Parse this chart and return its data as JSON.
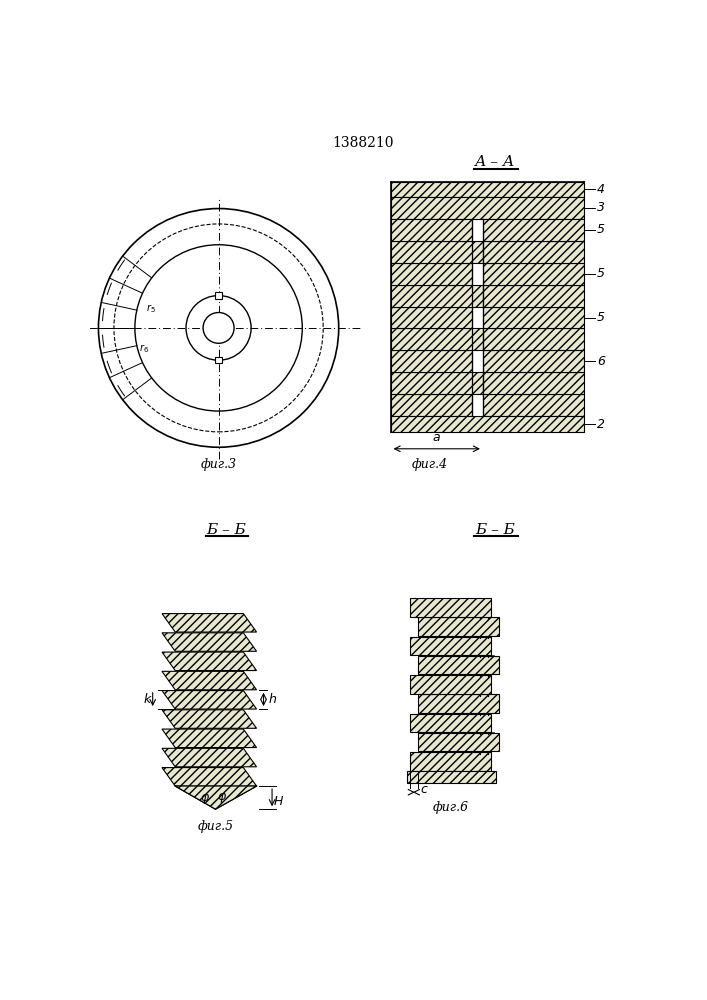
{
  "title": "1388210",
  "fig3_label": "фиг.3",
  "fig4_label": "фиг.4",
  "fig5_label": "фиг.5",
  "fig6_label": "фиг.6",
  "section_aa": "А – А",
  "section_bb1": "Б – Б",
  "section_bb2": "Б – Б",
  "bg_color": "#ffffff",
  "dim_a": "a",
  "dim_k": "k",
  "dim_h": "h",
  "dim_H": "H",
  "dim_phi": "φ",
  "dim_c": "c"
}
